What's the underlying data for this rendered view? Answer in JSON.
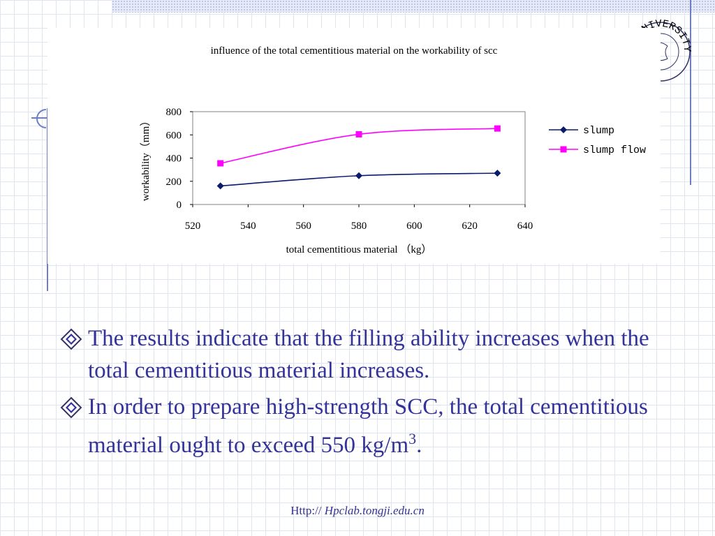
{
  "slide": {
    "bullets": [
      {
        "text": " The results indicate that the filling ability increases when the total cementitious material increases.",
        "icon": "diamond-bullet-icon"
      },
      {
        "text_before_sup": "In order to prepare high-strength SCC, the total cementitious material ought to exceed 550 kg/m",
        "sup": "3",
        "text_after_sup": ".",
        "icon": "diamond-bullet-icon"
      }
    ],
    "footer": {
      "prefix": "Http:// ",
      "host": "Hpclab.tongji.edu.cn"
    },
    "logo": {
      "text": "UNIVERSITY",
      "icon": "university-seal-icon"
    }
  },
  "chart_data": {
    "type": "line",
    "title": "influence of the total cementitious material  on the workability of scc",
    "xlabel": "total cementitious material （kg）",
    "ylabel": "workability（mm）",
    "xlim": [
      520,
      640
    ],
    "ylim": [
      0,
      800
    ],
    "xticks": [
      520,
      540,
      560,
      580,
      600,
      620,
      640
    ],
    "yticks": [
      0,
      200,
      400,
      600,
      800
    ],
    "legend_position": "right",
    "smooth": true,
    "series": [
      {
        "name": "slump",
        "x": [
          530,
          580,
          630
        ],
        "y": [
          160,
          248,
          270
        ],
        "color": "#0a1a6e",
        "marker": "diamond"
      },
      {
        "name": "slump flow",
        "x": [
          530,
          580,
          630
        ],
        "y": [
          355,
          605,
          655
        ],
        "color": "#ff00ff",
        "marker": "square"
      }
    ],
    "colors": {
      "bullet_text": "#333399",
      "grid": "#dfe4f1",
      "accent": "#6d7fc4"
    }
  }
}
